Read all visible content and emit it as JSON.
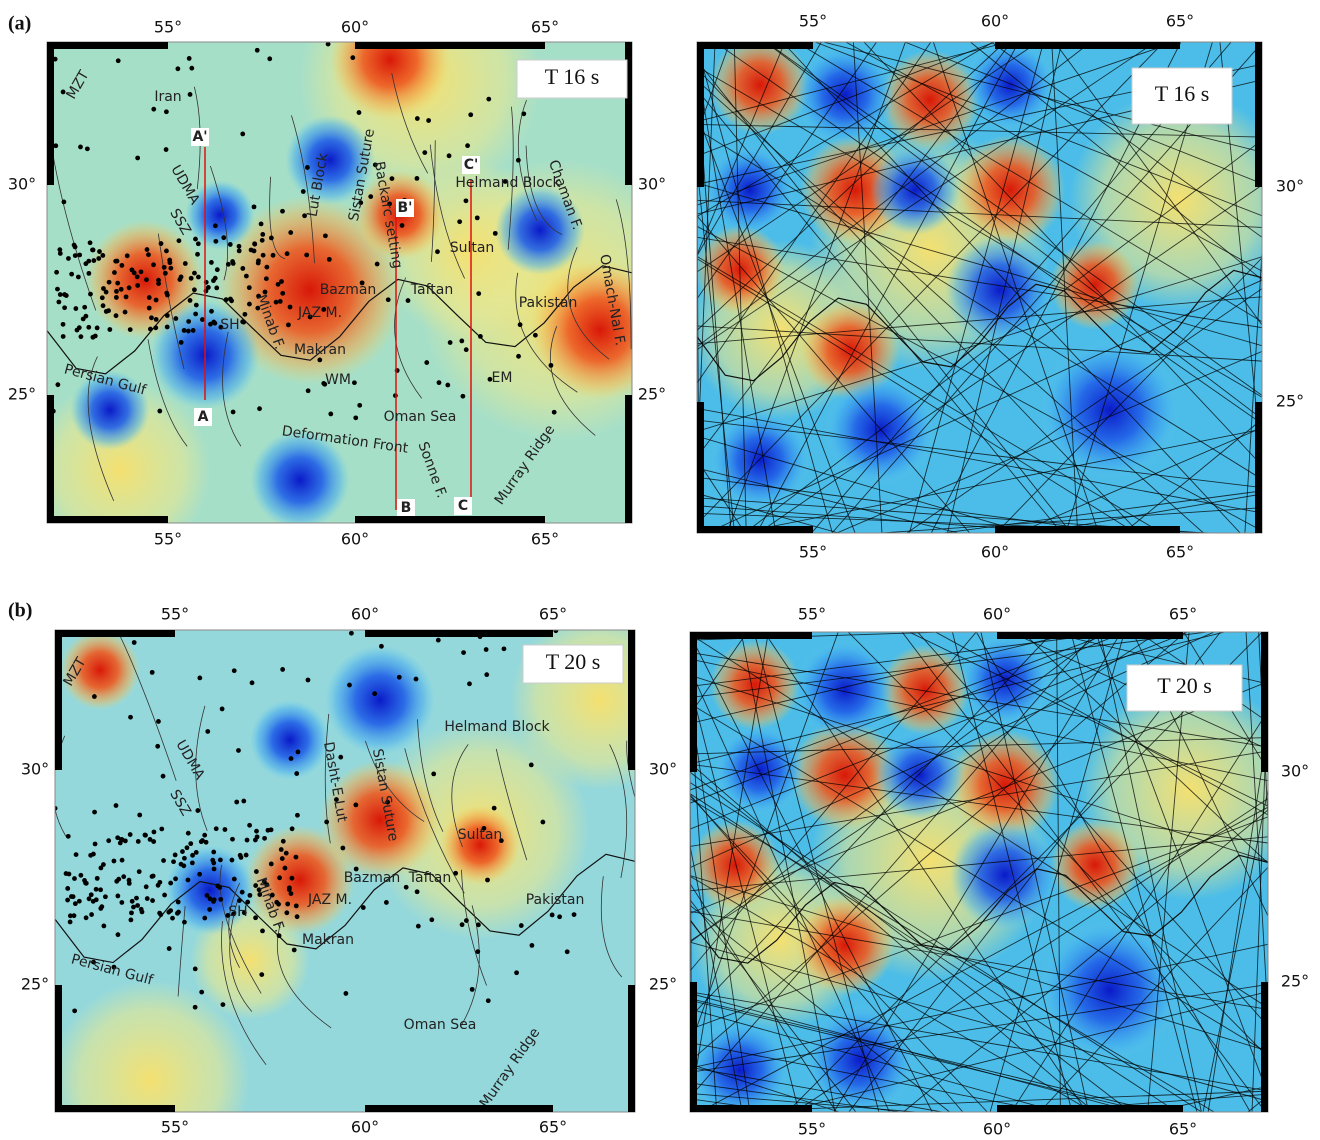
{
  "panels": [
    {
      "label": "(a)",
      "maps": [
        {
          "period": "T 16 s",
          "top_ticks": [
            "55°",
            "60°",
            "65°"
          ],
          "bottom_ticks": [
            "55°",
            "60°",
            "65°"
          ],
          "left_ticks": [
            "30°",
            "25°"
          ],
          "right_ticks": [
            "30°",
            "25°"
          ],
          "labels": [
            "MZT",
            "Iran",
            "A'",
            "UDMA",
            "SSZ",
            "Lut Block",
            "Sistan Suture",
            "Backarc setting",
            "B'",
            "C'",
            "Helmand Block",
            "Chaman F.",
            "Omach-Nal F.",
            "Sultan",
            "Bazman",
            "Taftan",
            "Pakistan",
            "JAZ M.",
            "SH",
            "Minab F.",
            "Makran",
            "WM",
            "EM",
            "Persian Gulf",
            "Oman Sea",
            "Deformation Front",
            "Sonne F.",
            "Murray Ridge",
            "A",
            "B",
            "C"
          ]
        },
        {
          "period": "T 16 s",
          "top_ticks": [
            "55°",
            "60°",
            "65°"
          ],
          "bottom_ticks": [
            "55°",
            "60°",
            "65°"
          ],
          "right_ticks": [
            "30°",
            "25°"
          ]
        }
      ]
    },
    {
      "label": "(b)",
      "maps": [
        {
          "period": "T 20 s",
          "top_ticks": [
            "55°",
            "60°",
            "65°"
          ],
          "bottom_ticks": [
            "55°",
            "60°",
            "65°"
          ],
          "left_ticks": [
            "30°",
            "25°"
          ],
          "right_ticks": [
            "30°",
            "25°"
          ],
          "labels": [
            "MZT",
            "UDMA",
            "SSZ",
            "Dasht-E Lut",
            "Sistan Suture",
            "Helmand Block",
            "Sultan",
            "Bazman",
            "Taftan",
            "Pakistan",
            "JAZ M.",
            "SH",
            "Minab F.",
            "Makran",
            "Persian Gulf",
            "Oman Sea",
            "Murray Ridge"
          ]
        },
        {
          "period": "T 20 s",
          "top_ticks": [
            "55°",
            "60°",
            "65°"
          ],
          "bottom_ticks": [
            "55°",
            "60°",
            "65°"
          ],
          "right_ticks": [
            "30°",
            "25°"
          ]
        }
      ]
    }
  ]
}
